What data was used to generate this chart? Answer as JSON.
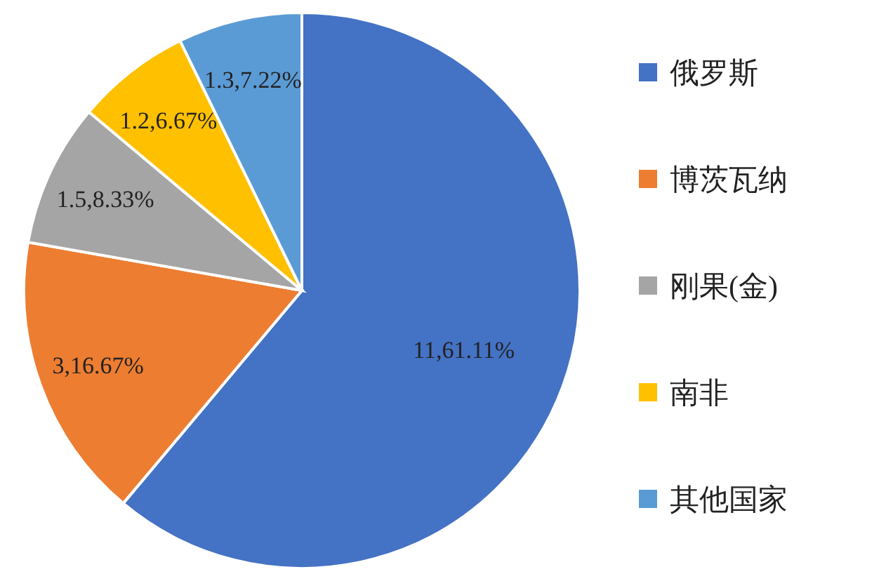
{
  "chart_data": {
    "type": "pie",
    "categories": [
      "俄罗斯",
      "博茨瓦纳",
      "刚果(金)",
      "南非",
      "其他国家"
    ],
    "values": [
      61.11,
      16.67,
      8.33,
      6.67,
      7.22
    ],
    "colors": [
      "#4472c4",
      "#ed7d31",
      "#a5a5a5",
      "#ffc000",
      "#5b9bd5"
    ],
    "value_labels": [
      "11,61.11%",
      "3,16.67%",
      "1.5,8.33%",
      "1.2,6.67%",
      "1.3,7.22%"
    ],
    "legend": "right"
  }
}
